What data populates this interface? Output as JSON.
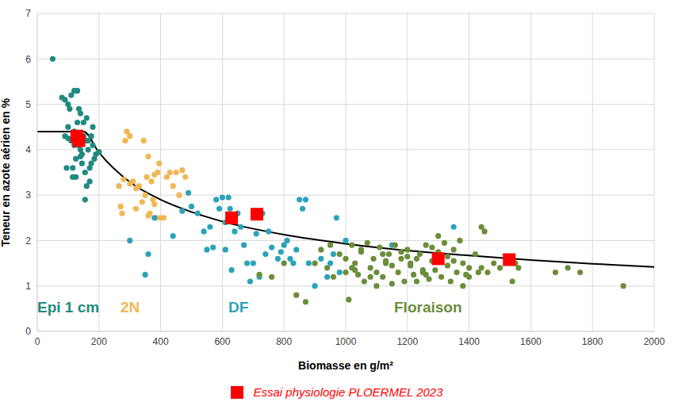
{
  "chart_data": {
    "type": "scatter",
    "x_label": "Biomasse en g/m²",
    "y_label": "Teneur en azote aérien en %",
    "xlim": [
      0,
      2000
    ],
    "xticks": [
      0,
      200,
      400,
      600,
      800,
      1000,
      1200,
      1400,
      1600,
      1800,
      2000
    ],
    "ylim": [
      0,
      7
    ],
    "yticks": [
      0,
      1,
      2,
      3,
      4,
      5,
      6,
      7
    ],
    "grid": true,
    "legend": "bottom",
    "series": [
      {
        "name": "Epi 1 cm",
        "type": "scatter",
        "marker": "circle",
        "color": "#1f8a80",
        "x": [
          50,
          80,
          90,
          95,
          100,
          105,
          110,
          115,
          120,
          125,
          130,
          135,
          140,
          145,
          150,
          155,
          160,
          165,
          170,
          175,
          180,
          185,
          190,
          200,
          110,
          120,
          130,
          140,
          150,
          160,
          100,
          115,
          125,
          135,
          145,
          155,
          165,
          175,
          90,
          100,
          120,
          140,
          160,
          170,
          180
        ],
        "values": [
          6.0,
          5.15,
          5.1,
          3.6,
          5.0,
          4.9,
          5.2,
          3.4,
          5.3,
          3.8,
          5.3,
          4.9,
          4.0,
          3.7,
          4.6,
          2.9,
          4.7,
          4.2,
          3.6,
          4.3,
          4.5,
          3.8,
          3.9,
          3.95,
          4.2,
          4.4,
          4.6,
          4.8,
          4.3,
          3.2,
          4.5,
          3.6,
          3.4,
          4.1,
          3.9,
          3.5,
          4.0,
          3.7,
          4.3,
          4.25,
          4.1,
          3.85,
          4.2,
          3.3,
          4.1
        ]
      },
      {
        "name": "2N",
        "type": "scatter",
        "marker": "circle",
        "color": "#f0b755",
        "x": [
          265,
          270,
          275,
          285,
          290,
          300,
          310,
          320,
          330,
          340,
          345,
          350,
          355,
          360,
          365,
          370,
          375,
          380,
          385,
          390,
          395,
          400,
          410,
          420,
          430,
          440,
          450,
          460,
          470,
          480,
          360,
          380,
          300,
          320,
          280
        ],
        "values": [
          3.2,
          2.75,
          2.6,
          4.2,
          4.4,
          4.3,
          3.3,
          2.7,
          3.2,
          2.85,
          4.2,
          3.0,
          3.4,
          3.85,
          2.6,
          3.3,
          2.9,
          3.45,
          2.5,
          3.5,
          3.7,
          2.5,
          2.5,
          3.4,
          3.5,
          3.2,
          3.5,
          3.0,
          3.55,
          3.4,
          2.55,
          2.8,
          3.25,
          3.15,
          3.35
        ]
      },
      {
        "name": "DF",
        "type": "scatter",
        "marker": "circle",
        "color": "#2ba3b8",
        "x": [
          300,
          350,
          360,
          380,
          440,
          470,
          490,
          500,
          520,
          540,
          550,
          560,
          570,
          580,
          590,
          600,
          610,
          620,
          625,
          630,
          640,
          650,
          660,
          670,
          680,
          690,
          700,
          710,
          720,
          730,
          740,
          750,
          760,
          780,
          790,
          800,
          810,
          820,
          830,
          840,
          850,
          860,
          870,
          880,
          900,
          920,
          940,
          950,
          960,
          970,
          980,
          1000,
          1150,
          1350,
          640,
          610
        ],
        "values": [
          2.0,
          1.25,
          1.7,
          2.5,
          2.1,
          2.65,
          3.05,
          2.75,
          2.6,
          2.2,
          1.8,
          2.3,
          1.85,
          2.9,
          2.7,
          2.95,
          1.8,
          2.95,
          2.7,
          1.35,
          2.2,
          2.6,
          2.3,
          1.9,
          1.5,
          1.1,
          1.5,
          2.15,
          1.2,
          2.6,
          1.7,
          2.2,
          1.85,
          1.6,
          1.75,
          1.9,
          2.0,
          1.6,
          1.5,
          1.8,
          2.9,
          2.7,
          2.9,
          1.5,
          1.0,
          1.6,
          1.2,
          1.5,
          1.7,
          2.5,
          1.3,
          2.0,
          1.9,
          2.3,
          2.5,
          2.4
        ]
      },
      {
        "name": "Floraison",
        "type": "scatter",
        "marker": "circle",
        "color": "#6b8e3a",
        "x": [
          720,
          760,
          800,
          840,
          870,
          900,
          920,
          940,
          950,
          960,
          980,
          1000,
          1010,
          1020,
          1030,
          1040,
          1050,
          1060,
          1070,
          1080,
          1090,
          1100,
          1110,
          1120,
          1130,
          1140,
          1150,
          1160,
          1170,
          1180,
          1190,
          1200,
          1210,
          1220,
          1230,
          1240,
          1250,
          1260,
          1270,
          1280,
          1290,
          1300,
          1310,
          1320,
          1330,
          1340,
          1350,
          1360,
          1370,
          1380,
          1390,
          1400,
          1420,
          1440,
          1460,
          1480,
          1500,
          1520,
          1540,
          1560,
          1000,
          1050,
          1100,
          1150,
          1200,
          1250,
          1300,
          1350,
          1400,
          1450,
          1020,
          1080,
          1130,
          1180,
          1230,
          1280,
          1330,
          1380,
          1430,
          1550,
          1680,
          1720,
          1760,
          1900,
          1440,
          1540,
          1030,
          1120,
          1260,
          1210
        ],
        "values": [
          1.25,
          1.2,
          1.5,
          0.8,
          0.65,
          1.5,
          1.8,
          1.4,
          1.9,
          1.2,
          1.7,
          1.3,
          0.7,
          1.9,
          1.5,
          1.25,
          1.75,
          1.1,
          1.95,
          1.4,
          1.6,
          1.3,
          1.85,
          1.2,
          1.5,
          1.7,
          1.05,
          1.9,
          1.3,
          1.6,
          1.1,
          1.8,
          1.45,
          1.25,
          1.6,
          1.7,
          1.3,
          1.9,
          1.15,
          1.55,
          1.35,
          1.75,
          1.2,
          1.95,
          1.45,
          1.1,
          1.8,
          1.3,
          2.0,
          1.5,
          1.25,
          1.4,
          1.7,
          2.3,
          1.3,
          1.5,
          1.4,
          1.6,
          1.1,
          1.4,
          1.6,
          1.8,
          1.0,
          1.45,
          1.65,
          1.35,
          2.1,
          1.55,
          1.2,
          2.2,
          1.4,
          1.2,
          1.55,
          1.75,
          1.1,
          1.85,
          1.65,
          1.0,
          1.3,
          1.5,
          1.3,
          1.4,
          1.3,
          1.0,
          1.4,
          1.6,
          1.35,
          1.7,
          1.25,
          1.5
        ]
      },
      {
        "type": "line",
        "color": "#000000",
        "line_style": "solid",
        "x": [
          0,
          100,
          150,
          200,
          300,
          400,
          500,
          600,
          800,
          1000,
          1200,
          1400,
          1600,
          1800,
          2000
        ],
        "values": [
          4.4,
          4.4,
          4.4,
          3.94,
          3.29,
          2.9,
          2.63,
          2.42,
          2.13,
          1.93,
          1.78,
          1.67,
          1.57,
          1.49,
          1.42
        ]
      },
      {
        "name": "Essai physiologie PLOERMEL 2023",
        "type": "scatter",
        "marker": "square",
        "color": "#ff0000",
        "x": [
          128,
          135,
          630,
          712,
          1300,
          1530
        ],
        "values": [
          4.3,
          4.2,
          2.5,
          2.58,
          1.6,
          1.58
        ]
      }
    ]
  }
}
